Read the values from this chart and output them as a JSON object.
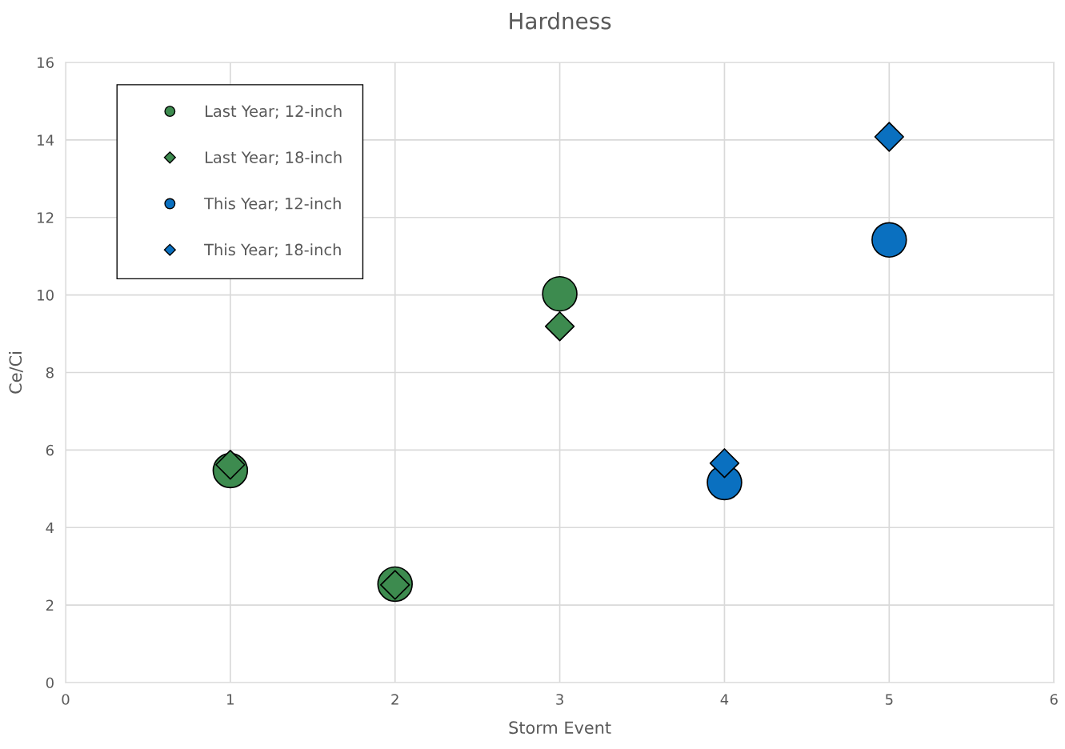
{
  "chart_data": {
    "type": "scatter",
    "title": "Hardness",
    "xlabel": "Storm Event",
    "ylabel": "Ce/Ci",
    "xlim": [
      0,
      6
    ],
    "xticks": [
      0,
      1,
      2,
      3,
      4,
      5,
      6
    ],
    "ylim": [
      0,
      16
    ],
    "yticks": [
      0,
      2,
      4,
      6,
      8,
      10,
      12,
      14,
      16
    ],
    "grid": true,
    "legend": "top left",
    "series": [
      {
        "name": "Last Year; 12-inch",
        "color": "#3d8b4f",
        "marker": "circle",
        "x": [
          1,
          2,
          3
        ],
        "values": [
          5.47,
          2.54,
          10.03
        ]
      },
      {
        "name": "Last Year; 18-inch",
        "color": "#3d8b4f",
        "marker": "diamond",
        "x": [
          1,
          2,
          3
        ],
        "values": [
          5.62,
          2.52,
          9.19
        ]
      },
      {
        "name": "This Year; 12-inch",
        "color": "#0a70c0",
        "marker": "circle",
        "x": [
          4,
          5
        ],
        "values": [
          5.16,
          11.42
        ]
      },
      {
        "name": "This Year; 18-inch",
        "color": "#0a70c0",
        "marker": "diamond",
        "x": [
          4,
          5
        ],
        "values": [
          5.66,
          14.08
        ]
      }
    ]
  }
}
